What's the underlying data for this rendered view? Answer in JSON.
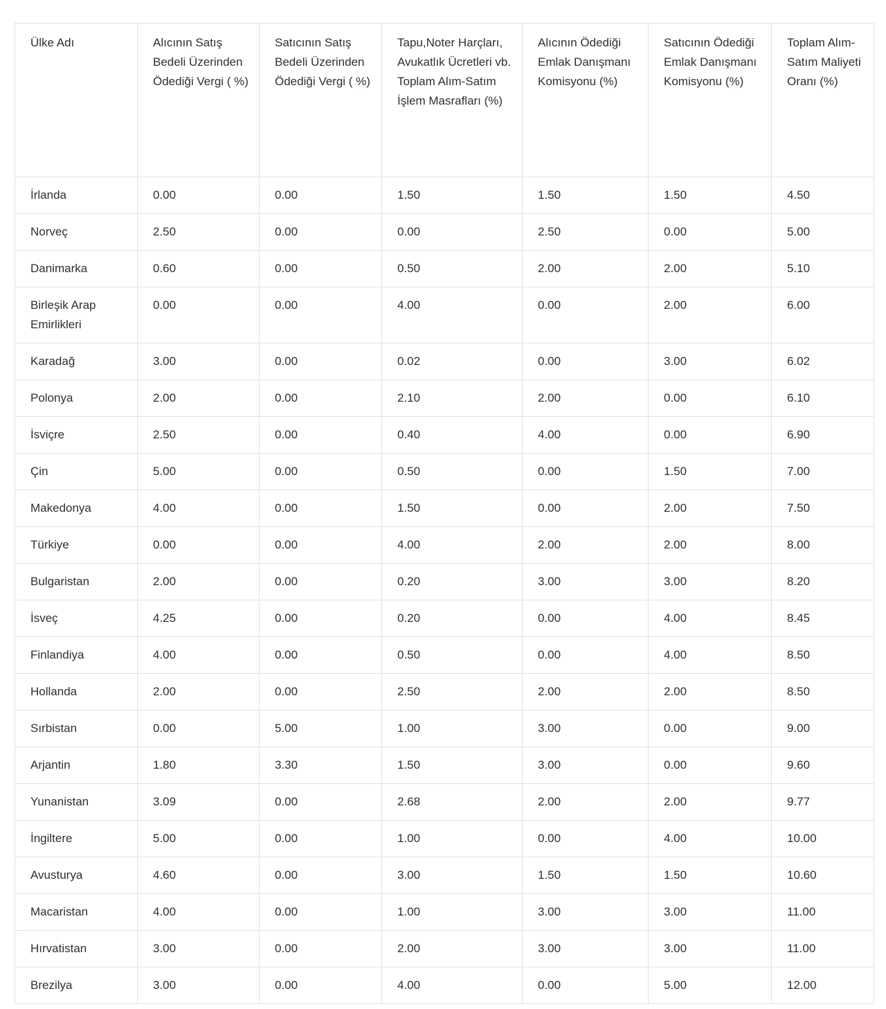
{
  "colors": {
    "text": "#2e2e38",
    "border": "#e2e2e2",
    "background": "#ffffff"
  },
  "table": {
    "columns": [
      "Ülke Adı",
      "Alıcının Satış Bedeli Üzerinden Ödediği Vergi ( %)",
      "Satıcının Satış Bedeli Üzerinden Ödediği Vergi ( %)",
      "Tapu,Noter Harçları, Avukatlık Ücretleri vb. Toplam Alım-Satım İşlem Masrafları (%)",
      "Alıcının Ödediği Emlak Danışmanı Komisyonu (%)",
      "Satıcının Ödediği Emlak Danışmanı Komisyonu (%)",
      "Toplam Alım-Satım Maliyeti Oranı (%)"
    ],
    "rows": [
      {
        "country": "İrlanda",
        "values": [
          "0.00",
          "0.00",
          "1.50",
          "1.50",
          "1.50",
          "4.50"
        ]
      },
      {
        "country": "Norveç",
        "values": [
          "2.50",
          "0.00",
          "0.00",
          "2.50",
          "0.00",
          "5.00"
        ]
      },
      {
        "country": "Danimarka",
        "values": [
          "0.60",
          "0.00",
          "0.50",
          "2.00",
          "2.00",
          "5.10"
        ]
      },
      {
        "country": "Birleşik Arap Emirlikleri",
        "values": [
          "0.00",
          "0.00",
          "4.00",
          "0.00",
          "2.00",
          "6.00"
        ]
      },
      {
        "country": "Karadağ",
        "values": [
          "3.00",
          "0.00",
          "0.02",
          "0.00",
          "3.00",
          "6.02"
        ]
      },
      {
        "country": "Polonya",
        "values": [
          "2.00",
          "0.00",
          "2.10",
          "2.00",
          "0.00",
          "6.10"
        ]
      },
      {
        "country": "İsviçre",
        "values": [
          "2.50",
          "0.00",
          "0.40",
          "4.00",
          "0.00",
          "6.90"
        ]
      },
      {
        "country": "Çin",
        "values": [
          "5.00",
          "0.00",
          "0.50",
          "0.00",
          "1.50",
          "7.00"
        ]
      },
      {
        "country": "Makedonya",
        "values": [
          "4.00",
          "0.00",
          "1.50",
          "0.00",
          "2.00",
          "7.50"
        ]
      },
      {
        "country": "Türkiye",
        "values": [
          "0.00",
          "0.00",
          "4.00",
          "2.00",
          "2.00",
          "8.00"
        ]
      },
      {
        "country": "Bulgaristan",
        "values": [
          "2.00",
          "0.00",
          "0.20",
          "3.00",
          "3.00",
          "8.20"
        ]
      },
      {
        "country": "İsveç",
        "values": [
          "4.25",
          "0.00",
          "0.20",
          "0.00",
          "4.00",
          "8.45"
        ]
      },
      {
        "country": "Finlandiya",
        "values": [
          "4.00",
          "0.00",
          "0.50",
          "0.00",
          "4.00",
          "8.50"
        ]
      },
      {
        "country": "Hollanda",
        "values": [
          "2.00",
          "0.00",
          "2.50",
          "2.00",
          "2.00",
          "8.50"
        ]
      },
      {
        "country": "Sırbistan",
        "values": [
          "0.00",
          "5.00",
          "1.00",
          "3.00",
          "0.00",
          "9.00"
        ]
      },
      {
        "country": "Arjantin",
        "values": [
          "1.80",
          "3.30",
          "1.50",
          "3.00",
          "0.00",
          "9.60"
        ]
      },
      {
        "country": "Yunanistan",
        "values": [
          "3.09",
          "0.00",
          "2.68",
          "2.00",
          "2.00",
          "9.77"
        ]
      },
      {
        "country": "İngiltere",
        "values": [
          "5.00",
          "0.00",
          "1.00",
          "0.00",
          "4.00",
          "10.00"
        ]
      },
      {
        "country": "Avusturya",
        "values": [
          "4.60",
          "0.00",
          "3.00",
          "1.50",
          "1.50",
          "10.60"
        ]
      },
      {
        "country": "Macaristan",
        "values": [
          "4.00",
          "0.00",
          "1.00",
          "3.00",
          "3.00",
          "11.00"
        ]
      },
      {
        "country": "Hırvatistan",
        "values": [
          "3.00",
          "0.00",
          "2.00",
          "3.00",
          "3.00",
          "11.00"
        ]
      },
      {
        "country": "Brezilya",
        "values": [
          "3.00",
          "0.00",
          "4.00",
          "0.00",
          "5.00",
          "12.00"
        ]
      }
    ]
  }
}
